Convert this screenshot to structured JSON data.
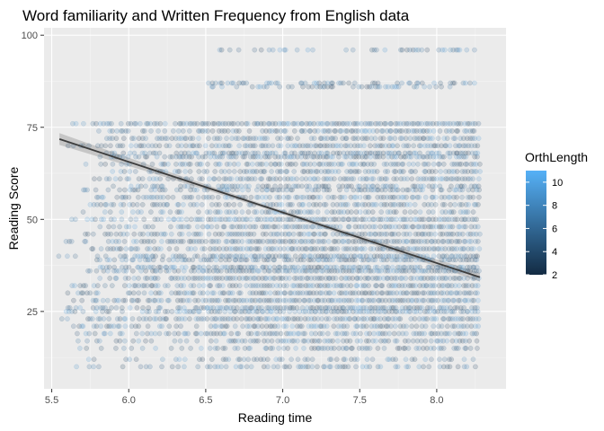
{
  "chart_data": {
    "type": "scatter",
    "title": "Word familiarity and Written Frequency from English data",
    "xlabel": "Reading time",
    "ylabel": "Reading Score",
    "xlim": [
      5.45,
      8.45
    ],
    "ylim": [
      4,
      102
    ],
    "x_ticks": [
      5.5,
      6.0,
      6.5,
      7.0,
      7.5,
      8.0
    ],
    "x_tick_labels": [
      "5.5",
      "6.0",
      "6.5",
      "7.0",
      "7.5",
      "8.0"
    ],
    "y_ticks": [
      25,
      50,
      75,
      100
    ],
    "y_tick_labels": [
      "25",
      "50",
      "75",
      "100"
    ],
    "grid": true,
    "panel_background": "#ebebeb",
    "point_alpha": 0.18,
    "color_scale": {
      "title": "OrthLength",
      "low": 2,
      "high": 11,
      "low_color": "#132b43",
      "high_color": "#56b1f7",
      "breaks": [
        2,
        4,
        6,
        8,
        10
      ],
      "break_labels": [
        "2",
        "4",
        "6",
        "8",
        "10"
      ],
      "legend_position": "right"
    },
    "row_scores": [
      10,
      12,
      15,
      17,
      19,
      21,
      23,
      25,
      26,
      28,
      30,
      32,
      34,
      36,
      37,
      39,
      40,
      42,
      44,
      46,
      48,
      50,
      52,
      54,
      56,
      58,
      59,
      61,
      63,
      65,
      67,
      68,
      70,
      72,
      74,
      76,
      86,
      87,
      96
    ],
    "row_density": [
      0.55,
      0.5,
      0.55,
      0.7,
      0.8,
      0.75,
      0.9,
      0.95,
      0.9,
      1.0,
      0.95,
      0.9,
      0.95,
      1.0,
      0.9,
      0.85,
      0.95,
      0.9,
      0.95,
      0.9,
      0.85,
      1.0,
      0.7,
      0.75,
      0.8,
      0.7,
      0.75,
      0.85,
      0.7,
      0.8,
      0.9,
      0.8,
      0.85,
      0.75,
      0.8,
      1.0,
      0.55,
      0.55,
      0.4
    ],
    "row_xmin": [
      5.55,
      5.7,
      5.55,
      5.6,
      5.6,
      5.6,
      5.55,
      5.6,
      5.6,
      5.6,
      5.6,
      5.6,
      5.8,
      5.7,
      5.8,
      5.8,
      5.55,
      5.7,
      5.6,
      5.7,
      5.8,
      5.6,
      5.7,
      5.7,
      5.75,
      5.7,
      5.9,
      5.7,
      5.9,
      5.7,
      5.8,
      5.8,
      5.6,
      5.8,
      5.8,
      5.55,
      6.5,
      6.5,
      6.5
    ],
    "row_xmax": [
      8.28,
      8.28,
      8.28,
      8.28,
      8.28,
      8.28,
      8.28,
      8.28,
      8.28,
      8.28,
      8.28,
      8.28,
      8.28,
      8.28,
      8.28,
      8.28,
      8.28,
      8.28,
      8.28,
      8.28,
      8.28,
      8.28,
      8.28,
      8.28,
      8.28,
      8.28,
      8.28,
      8.28,
      8.28,
      8.28,
      8.28,
      8.28,
      8.28,
      8.28,
      8.28,
      8.28,
      8.1,
      8.28,
      8.25
    ],
    "regression_line": {
      "x": [
        5.55,
        8.28
      ],
      "y": [
        71.8,
        34.3
      ]
    },
    "confidence_band": {
      "x": [
        5.55,
        6.2,
        6.9,
        7.6,
        8.28
      ],
      "half_width": [
        1.6,
        0.9,
        0.5,
        0.7,
        1.2
      ]
    }
  }
}
